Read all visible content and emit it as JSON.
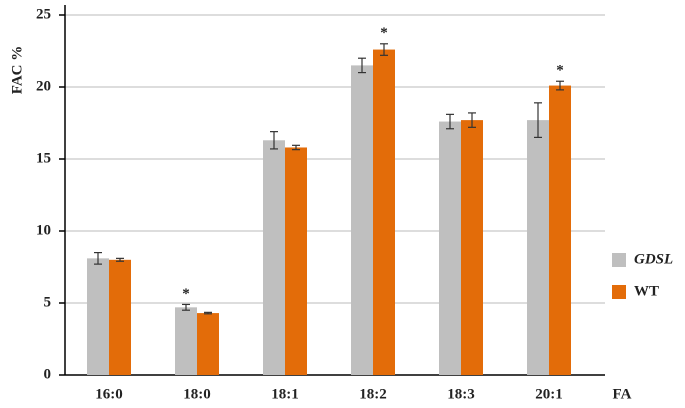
{
  "chart_data": {
    "type": "bar",
    "y_label": "FAC %",
    "x_label": "FA",
    "categories": [
      "16:0",
      "18:0",
      "18:1",
      "18:2",
      "18:3",
      "20:1"
    ],
    "series": [
      {
        "name": "GDSL",
        "color": "#bfbfbf",
        "values": [
          8.1,
          4.7,
          16.3,
          21.5,
          17.6,
          17.7
        ],
        "errors": [
          0.4,
          0.2,
          0.6,
          0.5,
          0.5,
          1.2
        ],
        "significance": [
          null,
          "*",
          null,
          null,
          null,
          null
        ]
      },
      {
        "name": "WT",
        "color": "#e36c09",
        "values": [
          8.0,
          4.3,
          15.8,
          22.6,
          17.7,
          20.1
        ],
        "errors": [
          0.1,
          0.05,
          0.15,
          0.4,
          0.5,
          0.3
        ],
        "significance": [
          null,
          null,
          null,
          "*",
          null,
          "*"
        ]
      }
    ],
    "ylim": [
      0,
      25
    ],
    "yticks": [
      0,
      5,
      10,
      15,
      20,
      25
    ],
    "grid": true
  }
}
